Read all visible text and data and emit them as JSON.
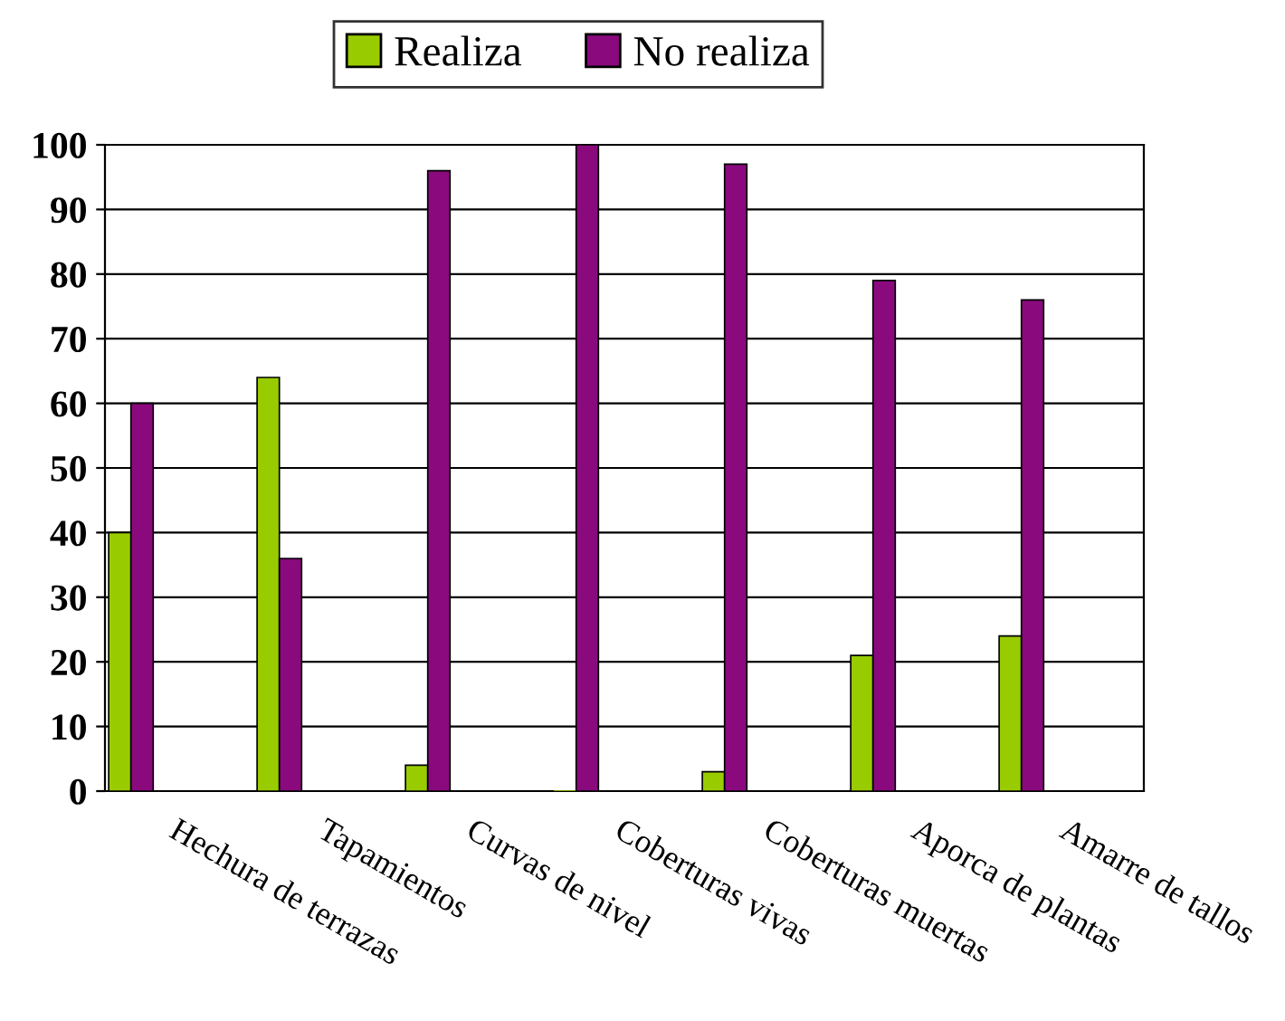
{
  "chart_data": {
    "type": "bar",
    "categories": [
      "Hechura de terrazas",
      "Tapamientos",
      "Curvas de nivel",
      "Coberturas vivas",
      "Coberturas muertas",
      "Aporca de plantas",
      "Amarre de tallos"
    ],
    "series": [
      {
        "name": "Realiza",
        "color": "#99cc00",
        "values": [
          40,
          64,
          4,
          0,
          3,
          21,
          24
        ]
      },
      {
        "name": "No realiza",
        "color": "#8a0a7e",
        "values": [
          60,
          36,
          96,
          100,
          97,
          79,
          76
        ]
      }
    ],
    "ylim": [
      0,
      100
    ],
    "yticks": [
      0,
      10,
      20,
      30,
      40,
      50,
      60,
      70,
      80,
      90,
      100
    ],
    "grid": "y",
    "legend": "top"
  }
}
